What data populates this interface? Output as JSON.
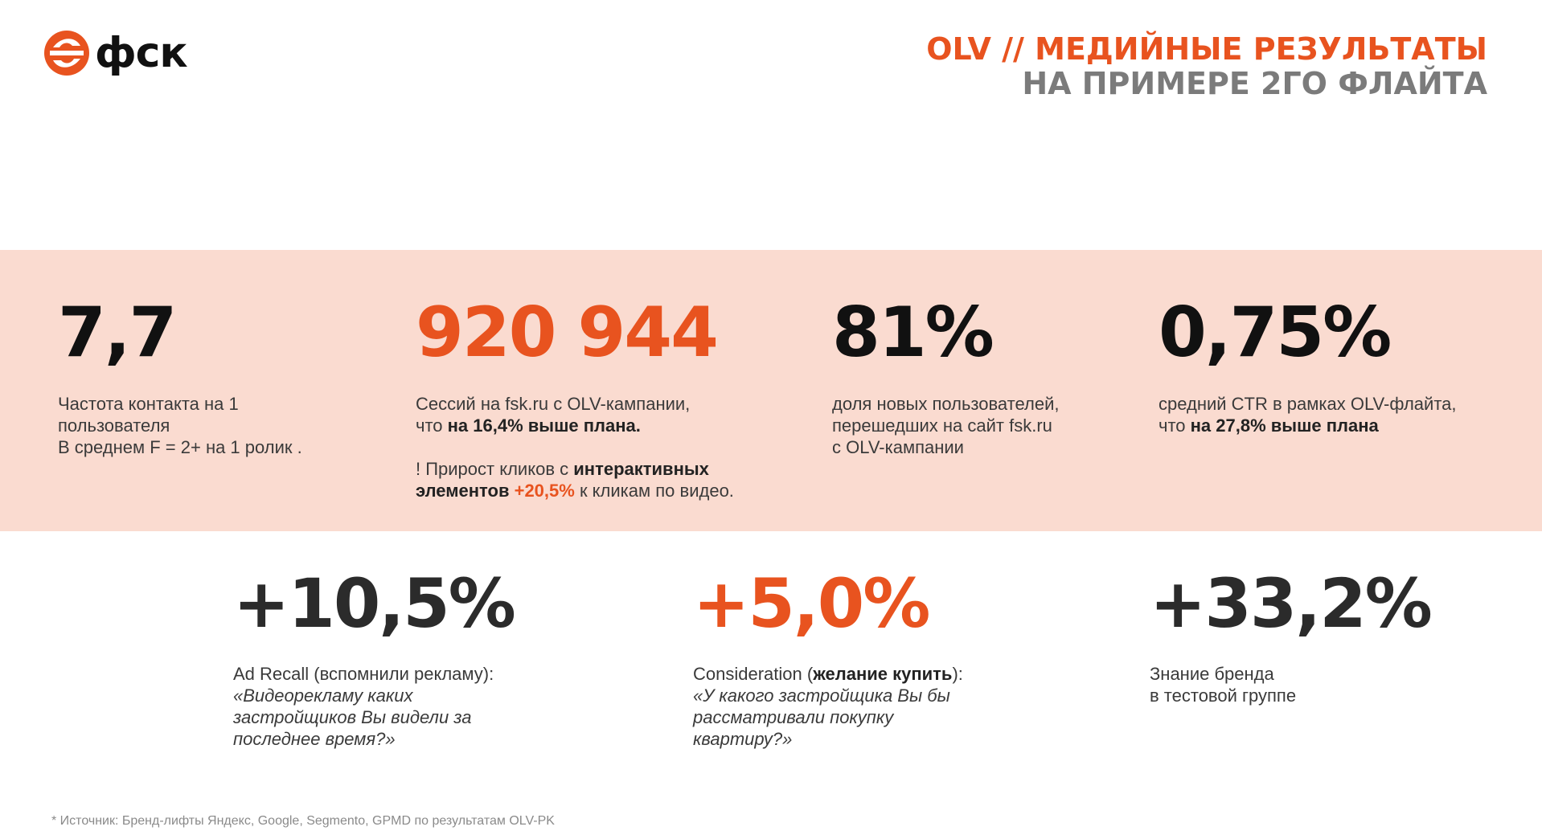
{
  "brand": {
    "logo_text": "фск",
    "logo_icon": "fsk-logo-icon",
    "accent_color": "#e8531f"
  },
  "title": {
    "line1": "OLV // МЕДИЙНЫЕ РЕЗУЛЬТАТЫ",
    "line2": "НА ПРИМЕРЕ 2ГО ФЛАЙТА"
  },
  "band_color": "#fadbd0",
  "metrics_top": [
    {
      "value": "7,7",
      "desc_l1": "Частота контакта на 1",
      "desc_l2": "пользователя",
      "desc_l3": "В среднем F = 2+ на 1 ролик ."
    },
    {
      "value": "920 944",
      "desc_l1": "Сессий на fsk.ru с OLV-кампании,",
      "desc_l2_pre": "что ",
      "desc_l2_bold": "на 16,4% выше плана.",
      "desc_l3_pre": "! Прирост кликов с ",
      "desc_l3_bold": "интерактивных",
      "desc_l4_bold": "элементов",
      "desc_l4_orange": " +20,5%",
      "desc_l4_post": " к кликам по видео."
    },
    {
      "value": "81%",
      "desc_l1": "доля новых пользователей,",
      "desc_l2": "перешедших на сайт fsk.ru",
      "desc_l3": "с OLV-кампании"
    },
    {
      "value": "0,75%",
      "desc_l1": "средний CTR в рамках OLV-флайта,",
      "desc_l2_pre": "что ",
      "desc_l2_bold": "на 27,8% выше плана"
    }
  ],
  "metrics_bottom": [
    {
      "value": "+10,5%",
      "desc_l1": "Ad Recall (вспомнили рекламу):",
      "desc_l2": "«Видеорекламу каких",
      "desc_l3": "застройщиков Вы видели за",
      "desc_l4": "последнее время?»"
    },
    {
      "value": "+5,0%",
      "desc_l1_pre": "Consideration (",
      "desc_l1_bold": "желание купить",
      "desc_l1_post": "):",
      "desc_l2": "«У какого застройщика Вы бы",
      "desc_l3": "рассматривали покупку",
      "desc_l4": "квартиру?»"
    },
    {
      "value": "+33,2%",
      "desc_l1": "Знание бренда",
      "desc_l2": "в тестовой группе"
    }
  ],
  "footnote": "*  Источник: Бренд-лифты Яндекс, Google, Segmento, GPMD по результатам OLV-PK"
}
